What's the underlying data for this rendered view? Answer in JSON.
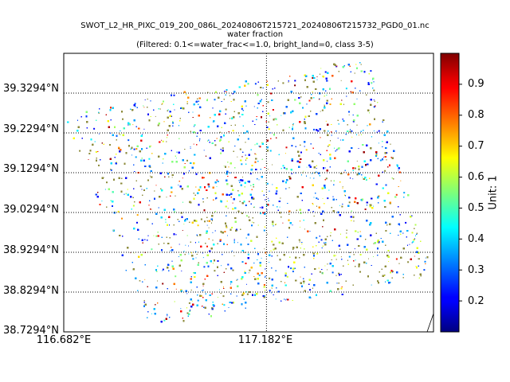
{
  "title": {
    "line1": "SWOT_L2_HR_PIXC_019_200_086L_20240806T215721_20240806T215732_PGD0_01.nc",
    "line2": "water fraction",
    "line3": "(Filtered: 0.1<=water_frac<=1.0, bright_land=0, class 3-5)"
  },
  "map": {
    "lat_ticks": [
      "39.3294°N",
      "39.2294°N",
      "39.1294°N",
      "39.0294°N",
      "38.9294°N",
      "38.8294°N",
      "38.7294°N"
    ],
    "lon_ticks": [
      "116.682°E",
      "117.182°E"
    ],
    "lat_range": [
      38.7294,
      39.4294
    ],
    "lon_range": [
      116.682,
      117.594
    ],
    "gridlines": "dotted black",
    "swath_corners_lonlat": [
      [
        116.682,
        39.275
      ],
      [
        117.431,
        39.42
      ],
      [
        117.594,
        38.865
      ],
      [
        116.892,
        38.745
      ]
    ],
    "colormap": "jet"
  },
  "colorbar": {
    "label": "Unit: 1",
    "range": [
      0.1,
      1.0
    ],
    "ticks": [
      "0.2",
      "0.3",
      "0.4",
      "0.5",
      "0.6",
      "0.7",
      "0.8",
      "0.9"
    ]
  }
}
